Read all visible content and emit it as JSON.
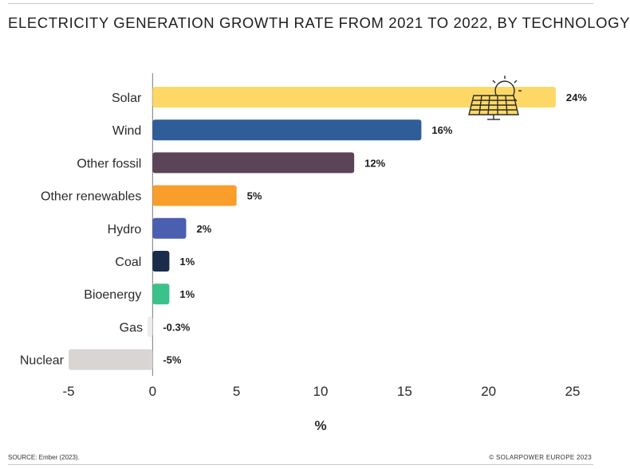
{
  "title": "ELECTRICITY GENERATION GROWTH RATE FROM 2021 TO 2022, BY TECHNOLOGY",
  "source": "SOURCE: Ember (2023).",
  "copyright": "© SOLARPOWER EUROPE 2023",
  "chart_data": {
    "type": "bar",
    "orientation": "horizontal",
    "title": "ELECTRICITY GENERATION GROWTH RATE FROM 2021 TO 2022, BY TECHNOLOGY",
    "xlabel": "%",
    "ylabel": "",
    "xlim": [
      -5,
      25
    ],
    "xticks": [
      -5,
      0,
      5,
      10,
      15,
      20,
      25
    ],
    "categories": [
      "Solar",
      "Wind",
      "Other fossil",
      "Other renewables",
      "Hydro",
      "Coal",
      "Bioenergy",
      "Gas",
      "Nuclear"
    ],
    "values": [
      24,
      16,
      12,
      5,
      2,
      1,
      1,
      -0.3,
      -5
    ],
    "value_labels": [
      "24%",
      "16%",
      "12%",
      "5%",
      "2%",
      "1%",
      "1%",
      "-0.3%",
      "-5%"
    ],
    "colors": [
      "#fdd866",
      "#2f5d97",
      "#5b4358",
      "#f99e2b",
      "#4b5fb0",
      "#1b2b4a",
      "#3cc18c",
      "#ededed",
      "#d9d5d3"
    ],
    "annotations": [
      "solar-panel-sun-icon next to Solar bar"
    ]
  }
}
